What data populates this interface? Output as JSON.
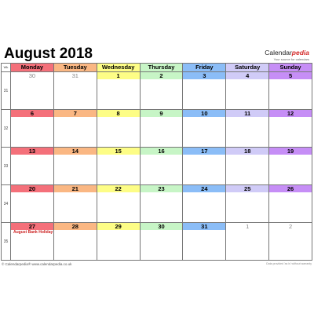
{
  "title": "August 2018",
  "brand": {
    "part1": "Calendar",
    "part2": "pedia",
    "tagline": "Your source for calendars"
  },
  "week_header": "Wk",
  "weekdays": [
    {
      "label": "Monday",
      "color": "#f4707a"
    },
    {
      "label": "Tuesday",
      "color": "#fab783"
    },
    {
      "label": "Wednesday",
      "color": "#fdfd86"
    },
    {
      "label": "Thursday",
      "color": "#c7f5c6"
    },
    {
      "label": "Friday",
      "color": "#8bbdf7"
    },
    {
      "label": "Saturday",
      "color": "#d0cbf7"
    },
    {
      "label": "Sunday",
      "color": "#c68ef6"
    }
  ],
  "weeks": [
    {
      "number": "31",
      "days": [
        {
          "date": "30",
          "current": false
        },
        {
          "date": "31",
          "current": false
        },
        {
          "date": "1",
          "current": true
        },
        {
          "date": "2",
          "current": true
        },
        {
          "date": "3",
          "current": true
        },
        {
          "date": "4",
          "current": true
        },
        {
          "date": "5",
          "current": true
        }
      ]
    },
    {
      "number": "32",
      "days": [
        {
          "date": "6",
          "current": true
        },
        {
          "date": "7",
          "current": true
        },
        {
          "date": "8",
          "current": true
        },
        {
          "date": "9",
          "current": true
        },
        {
          "date": "10",
          "current": true
        },
        {
          "date": "11",
          "current": true
        },
        {
          "date": "12",
          "current": true
        }
      ]
    },
    {
      "number": "33",
      "days": [
        {
          "date": "13",
          "current": true
        },
        {
          "date": "14",
          "current": true
        },
        {
          "date": "15",
          "current": true
        },
        {
          "date": "16",
          "current": true
        },
        {
          "date": "17",
          "current": true
        },
        {
          "date": "18",
          "current": true
        },
        {
          "date": "19",
          "current": true
        }
      ]
    },
    {
      "number": "34",
      "days": [
        {
          "date": "20",
          "current": true
        },
        {
          "date": "21",
          "current": true
        },
        {
          "date": "22",
          "current": true
        },
        {
          "date": "23",
          "current": true
        },
        {
          "date": "24",
          "current": true
        },
        {
          "date": "25",
          "current": true
        },
        {
          "date": "26",
          "current": true
        }
      ]
    },
    {
      "number": "35",
      "days": [
        {
          "date": "27",
          "current": true,
          "note": "August Bank Holiday"
        },
        {
          "date": "28",
          "current": true
        },
        {
          "date": "29",
          "current": true
        },
        {
          "date": "30",
          "current": true
        },
        {
          "date": "31",
          "current": true
        },
        {
          "date": "1",
          "current": false
        },
        {
          "date": "2",
          "current": false
        }
      ]
    }
  ],
  "footer_left": "© Calendarpedia®  www.calendarpedia.co.uk",
  "footer_right": "Data provided 'as is' without warranty"
}
